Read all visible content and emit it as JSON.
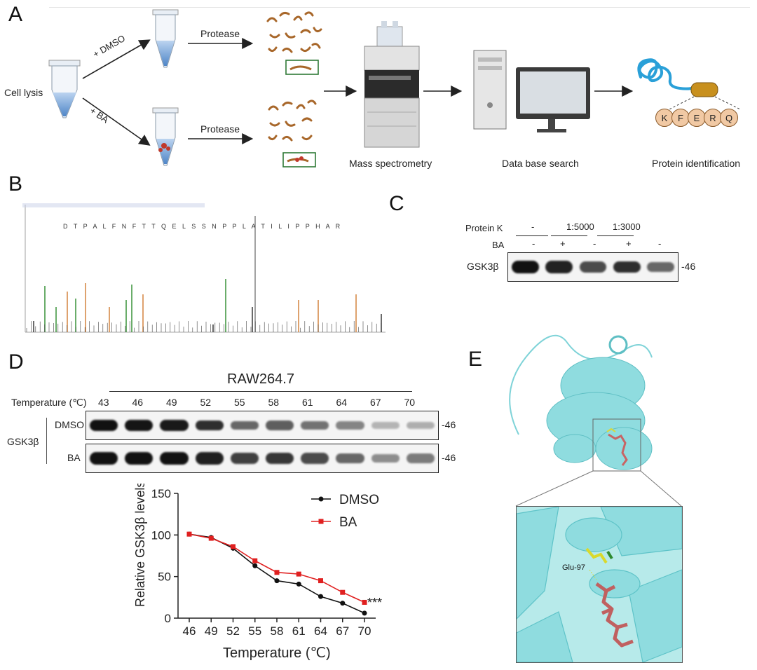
{
  "panels": {
    "a": "A",
    "b": "B",
    "c": "C",
    "d": "D",
    "e": "E"
  },
  "panelA": {
    "cell_lysis": "Cell lysis",
    "dmso_arrow": "+ DMSO",
    "ba_arrow": "+ BA",
    "protease_top": "Protease",
    "protease_bottom": "Protease",
    "mass_spec": "Mass spectrometry",
    "database": "Data base search",
    "protein_id": "Protein identification",
    "peptide_letters": [
      "K",
      "F",
      "E",
      "R",
      "Q"
    ]
  },
  "panelC": {
    "protein_k_label": "Protein K",
    "ba_label": "BA",
    "target": "GSK3β",
    "mw": "-46",
    "ratio_groups": [
      "-",
      "1:5000",
      "1:3000"
    ],
    "ba_signs": [
      "-",
      "+",
      "-",
      "+",
      "-"
    ],
    "band_intensity": [
      1.0,
      0.9,
      0.7,
      0.85,
      0.55
    ]
  },
  "panelD": {
    "cell_line": "RAW264.7",
    "temp_label": "Temperature (℃)",
    "temps": [
      "43",
      "46",
      "49",
      "52",
      "55",
      "58",
      "61",
      "64",
      "67",
      "70"
    ],
    "target": "GSK3β",
    "row_dmso": "DMSO",
    "row_ba": "BA",
    "mw_dmso": "-46",
    "mw_ba": "-46",
    "dmso_band_intensity": [
      1.0,
      0.98,
      0.95,
      0.85,
      0.55,
      0.6,
      0.5,
      0.4,
      0.15,
      0.18
    ],
    "ba_band_intensity": [
      1.0,
      1.0,
      1.0,
      0.92,
      0.75,
      0.8,
      0.7,
      0.55,
      0.35,
      0.45
    ]
  },
  "chart_data": {
    "type": "line",
    "ylabel": "Relative GSK3β  levels",
    "xlabel": "Temperature (℃)",
    "x": [
      46,
      49,
      52,
      55,
      58,
      61,
      64,
      67,
      70
    ],
    "ylim": [
      0,
      150
    ],
    "yticks": [
      0,
      50,
      100,
      150
    ],
    "significance": "***",
    "legend_position": "top-right",
    "series": [
      {
        "name": "DMSO",
        "color": "#111111",
        "values": [
          101,
          97,
          84,
          63,
          45,
          41,
          26,
          18,
          6
        ]
      },
      {
        "name": "BA",
        "color": "#e02020",
        "values": [
          101,
          96,
          86,
          69,
          55,
          53,
          45,
          31,
          19
        ]
      }
    ]
  },
  "panelE": {
    "residue": "Glu-97"
  }
}
